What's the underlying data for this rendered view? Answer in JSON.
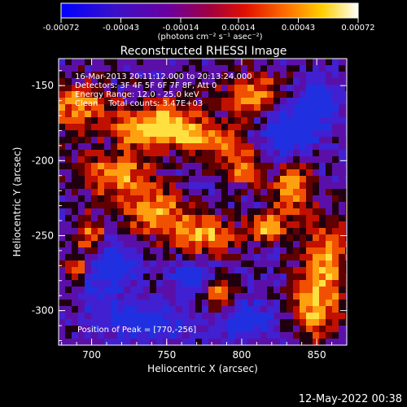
{
  "chart_data": {
    "type": "heatmap",
    "title": "Reconstructed RHESSI Image",
    "xlabel": "Heliocentric X (arcsec)",
    "ylabel": "Heliocentric Y (arcsec)",
    "xlim": [
      678,
      870
    ],
    "ylim": [
      -323,
      -132
    ],
    "xticks": [
      700,
      750,
      800,
      850
    ],
    "yticks": [
      -150,
      -200,
      -250,
      -300
    ],
    "colorbar": {
      "min": -0.00072,
      "max": 0.00072,
      "tick_values": [
        -0.00072,
        -0.00043,
        -0.00014,
        0.00014,
        0.00043,
        0.00072
      ],
      "tick_labels": [
        "-0.00072",
        "-0.00043",
        "-0.00014",
        "0.00014",
        "0.00043",
        "0.00072"
      ],
      "unit_label": "(photons cm⁻² s⁻¹ asec⁻²)",
      "colors": [
        "#0000ff",
        "#4b0082",
        "#7f00b0",
        "#c00000",
        "#ff4000",
        "#ffc000",
        "#ffffff"
      ]
    },
    "annotations": [
      "16-Mar-2013 20:11:12.000 to 20:13:24.000",
      "Detectors: 3F 4F 5F 6F 7F 8F, Att 0",
      "Energy Range: 12.0 - 25.0 keV",
      "Clean    Total counts: 3.47E+03"
    ],
    "peak_label": "Position of Peak = [770,-256]",
    "peak": [
      770,
      -256
    ]
  },
  "footer": {
    "timestamp": "12-May-2022 00:38"
  }
}
